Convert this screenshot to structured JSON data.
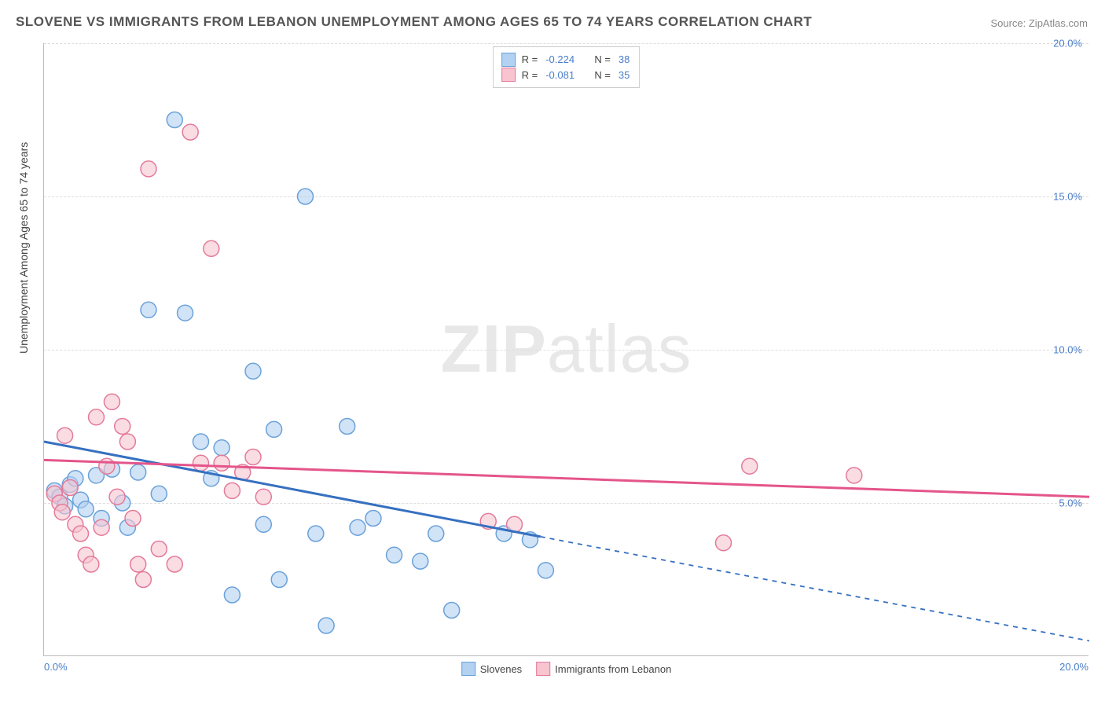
{
  "title": "SLOVENE VS IMMIGRANTS FROM LEBANON UNEMPLOYMENT AMONG AGES 65 TO 74 YEARS CORRELATION CHART",
  "source": "Source: ZipAtlas.com",
  "y_axis_label": "Unemployment Among Ages 65 to 74 years",
  "watermark_bold": "ZIP",
  "watermark_rest": "atlas",
  "chart": {
    "type": "scatter",
    "xlim": [
      0,
      20
    ],
    "ylim": [
      0,
      20
    ],
    "y_ticks": [
      5,
      10,
      15,
      20
    ],
    "y_tick_labels": [
      "5.0%",
      "10.0%",
      "15.0%",
      "20.0%"
    ],
    "x_tick_left": "0.0%",
    "x_tick_right": "20.0%",
    "grid_color": "#dddddd",
    "background_color": "#ffffff",
    "axis_color": "#bbbbbb",
    "marker_radius": 10,
    "marker_stroke_width": 1.5,
    "series": [
      {
        "name": "Slovenes",
        "fill": "#b3d1f0",
        "stroke": "#6aa1da",
        "fill_opacity": 0.6,
        "R": "-0.224",
        "N": "38",
        "points": [
          [
            0.2,
            5.4
          ],
          [
            0.3,
            5.2
          ],
          [
            0.4,
            4.9
          ],
          [
            0.5,
            5.6
          ],
          [
            0.6,
            5.8
          ],
          [
            0.7,
            5.1
          ],
          [
            0.8,
            4.8
          ],
          [
            1.0,
            5.9
          ],
          [
            1.1,
            4.5
          ],
          [
            1.3,
            6.1
          ],
          [
            1.5,
            5.0
          ],
          [
            1.6,
            4.2
          ],
          [
            1.8,
            6.0
          ],
          [
            2.0,
            11.3
          ],
          [
            2.2,
            5.3
          ],
          [
            2.5,
            17.5
          ],
          [
            2.7,
            11.2
          ],
          [
            3.0,
            7.0
          ],
          [
            3.2,
            5.8
          ],
          [
            3.4,
            6.8
          ],
          [
            3.6,
            2.0
          ],
          [
            4.0,
            9.3
          ],
          [
            4.2,
            4.3
          ],
          [
            4.4,
            7.4
          ],
          [
            4.5,
            2.5
          ],
          [
            5.0,
            15.0
          ],
          [
            5.2,
            4.0
          ],
          [
            5.4,
            1.0
          ],
          [
            5.8,
            7.5
          ],
          [
            6.0,
            4.2
          ],
          [
            6.3,
            4.5
          ],
          [
            6.7,
            3.3
          ],
          [
            7.2,
            3.1
          ],
          [
            7.5,
            4.0
          ],
          [
            7.8,
            1.5
          ],
          [
            8.8,
            4.0
          ],
          [
            9.3,
            3.8
          ],
          [
            9.6,
            2.8
          ]
        ],
        "regression": {
          "x1": 0,
          "y1": 7.0,
          "x2": 9.5,
          "y2": 3.9,
          "ext_x2": 20,
          "ext_y2": 0.5,
          "color": "#3670c0",
          "width": 3
        }
      },
      {
        "name": "Immigrants from Lebanon",
        "fill": "#f7c4d0",
        "stroke": "#e47a9a",
        "fill_opacity": 0.6,
        "R": "-0.081",
        "N": "35",
        "points": [
          [
            0.2,
            5.3
          ],
          [
            0.3,
            5.0
          ],
          [
            0.35,
            4.7
          ],
          [
            0.4,
            7.2
          ],
          [
            0.5,
            5.5
          ],
          [
            0.6,
            4.3
          ],
          [
            0.7,
            4.0
          ],
          [
            0.8,
            3.3
          ],
          [
            0.9,
            3.0
          ],
          [
            1.0,
            7.8
          ],
          [
            1.1,
            4.2
          ],
          [
            1.2,
            6.2
          ],
          [
            1.3,
            8.3
          ],
          [
            1.4,
            5.2
          ],
          [
            1.5,
            7.5
          ],
          [
            1.6,
            7.0
          ],
          [
            1.7,
            4.5
          ],
          [
            1.8,
            3.0
          ],
          [
            1.9,
            2.5
          ],
          [
            2.0,
            15.9
          ],
          [
            2.2,
            3.5
          ],
          [
            2.5,
            3.0
          ],
          [
            2.8,
            17.1
          ],
          [
            3.0,
            6.3
          ],
          [
            3.2,
            13.3
          ],
          [
            3.4,
            6.3
          ],
          [
            3.6,
            5.4
          ],
          [
            3.8,
            6.0
          ],
          [
            4.0,
            6.5
          ],
          [
            4.2,
            5.2
          ],
          [
            8.5,
            4.4
          ],
          [
            9.0,
            4.3
          ],
          [
            13.0,
            3.7
          ],
          [
            13.5,
            6.2
          ],
          [
            15.5,
            5.9
          ]
        ],
        "regression": {
          "x1": 0,
          "y1": 6.4,
          "x2": 20,
          "y2": 5.2,
          "color": "#e4558a",
          "width": 3
        }
      }
    ]
  },
  "legend_top_label_R": "R =",
  "legend_top_label_N": "N =",
  "legend_bottom": {
    "items": [
      "Slovenes",
      "Immigrants from Lebanon"
    ]
  }
}
